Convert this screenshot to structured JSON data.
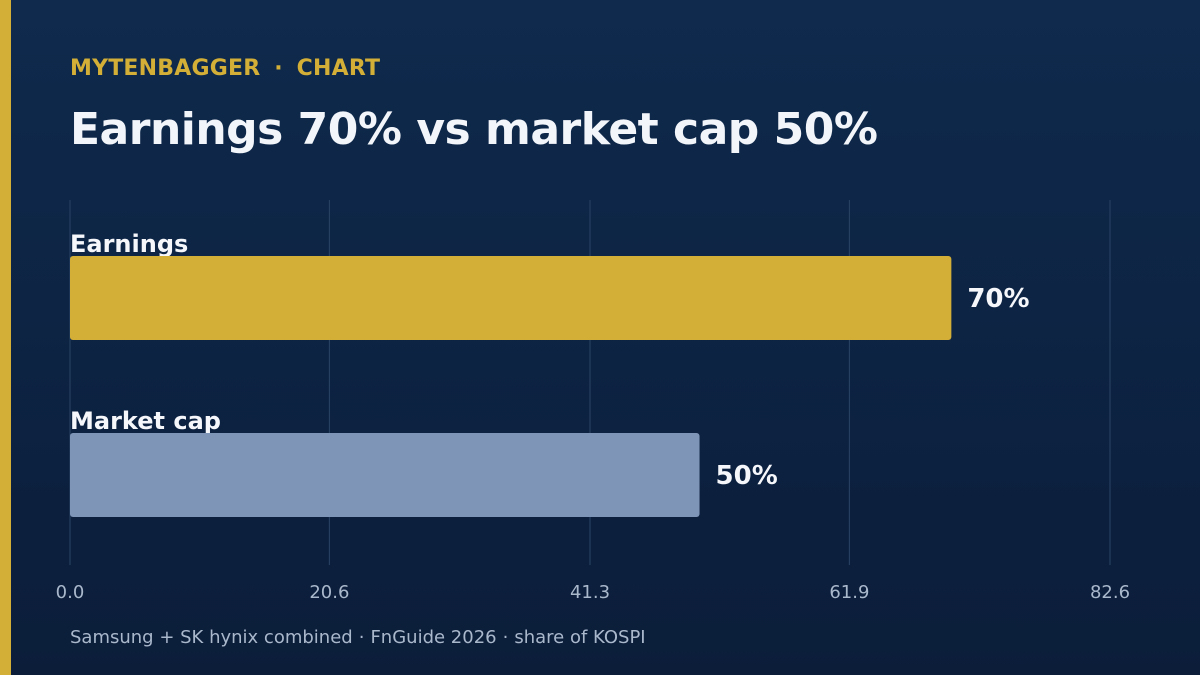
{
  "header": {
    "brand": "MYTENBAGGER",
    "separator": "·",
    "section": "CHART",
    "title": "Earnings 70% vs market cap 50%"
  },
  "footer": {
    "parts": [
      "Samsung + SK hynix combined",
      "FnGuide 2026",
      "share of KOSPI"
    ],
    "separator": "·"
  },
  "colors": {
    "background": "#0f2a4d",
    "accent": "#d4af37",
    "bar_earnings": "#d4af37",
    "bar_market_cap": "#7f95b8",
    "gridline": "#2b4466",
    "tick_text": "#aab8cc"
  },
  "chart_data": {
    "type": "bar",
    "orientation": "horizontal",
    "categories": [
      "Earnings",
      "Market cap"
    ],
    "values": [
      70,
      50
    ],
    "value_labels": [
      "70%",
      "50%"
    ],
    "xlim": [
      0,
      82.6
    ],
    "xticks": [
      0.0,
      20.6,
      41.3,
      61.9,
      82.6
    ],
    "xtick_labels": [
      "0.0",
      "20.6",
      "41.3",
      "61.9",
      "82.6"
    ],
    "grid": "vertical"
  }
}
